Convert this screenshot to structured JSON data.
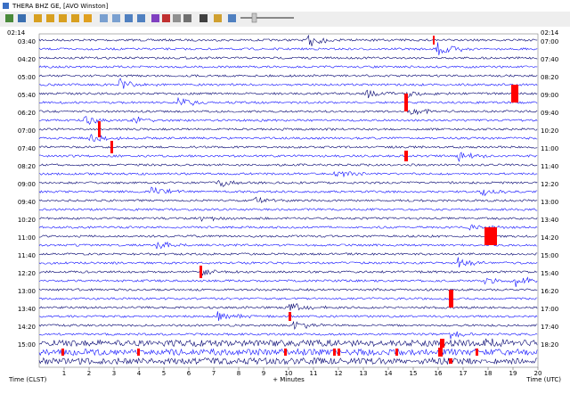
{
  "window_title": "THERA BHZ GE, [AVO Winston]",
  "top_left_time": "02:14",
  "top_right_time": "02:14",
  "left_times": [
    "03:40",
    "04:20",
    "05:00",
    "05:40",
    "06:20",
    "07:00",
    "07:40",
    "08:20",
    "09:00",
    "09:40",
    "10:20",
    "11:00",
    "11:40",
    "12:20",
    "13:00",
    "13:40",
    "14:20",
    "15:00"
  ],
  "right_times": [
    "07:00",
    "07:40",
    "08:20",
    "09:00",
    "09:40",
    "10:20",
    "11:00",
    "11:40",
    "12:20",
    "13:00",
    "13:40",
    "14:20",
    "15:00",
    "15:40",
    "16:20",
    "17:00",
    "17:40",
    "18:20"
  ],
  "minute_ticks": [
    1,
    2,
    3,
    4,
    5,
    6,
    7,
    8,
    9,
    10,
    11,
    12,
    13,
    14,
    15,
    16,
    17,
    18,
    19,
    20
  ],
  "left_axis_label": "Time (CLST)",
  "x_axis_label": "+ Minutes",
  "right_axis_label": "Time (UTC)"
}
